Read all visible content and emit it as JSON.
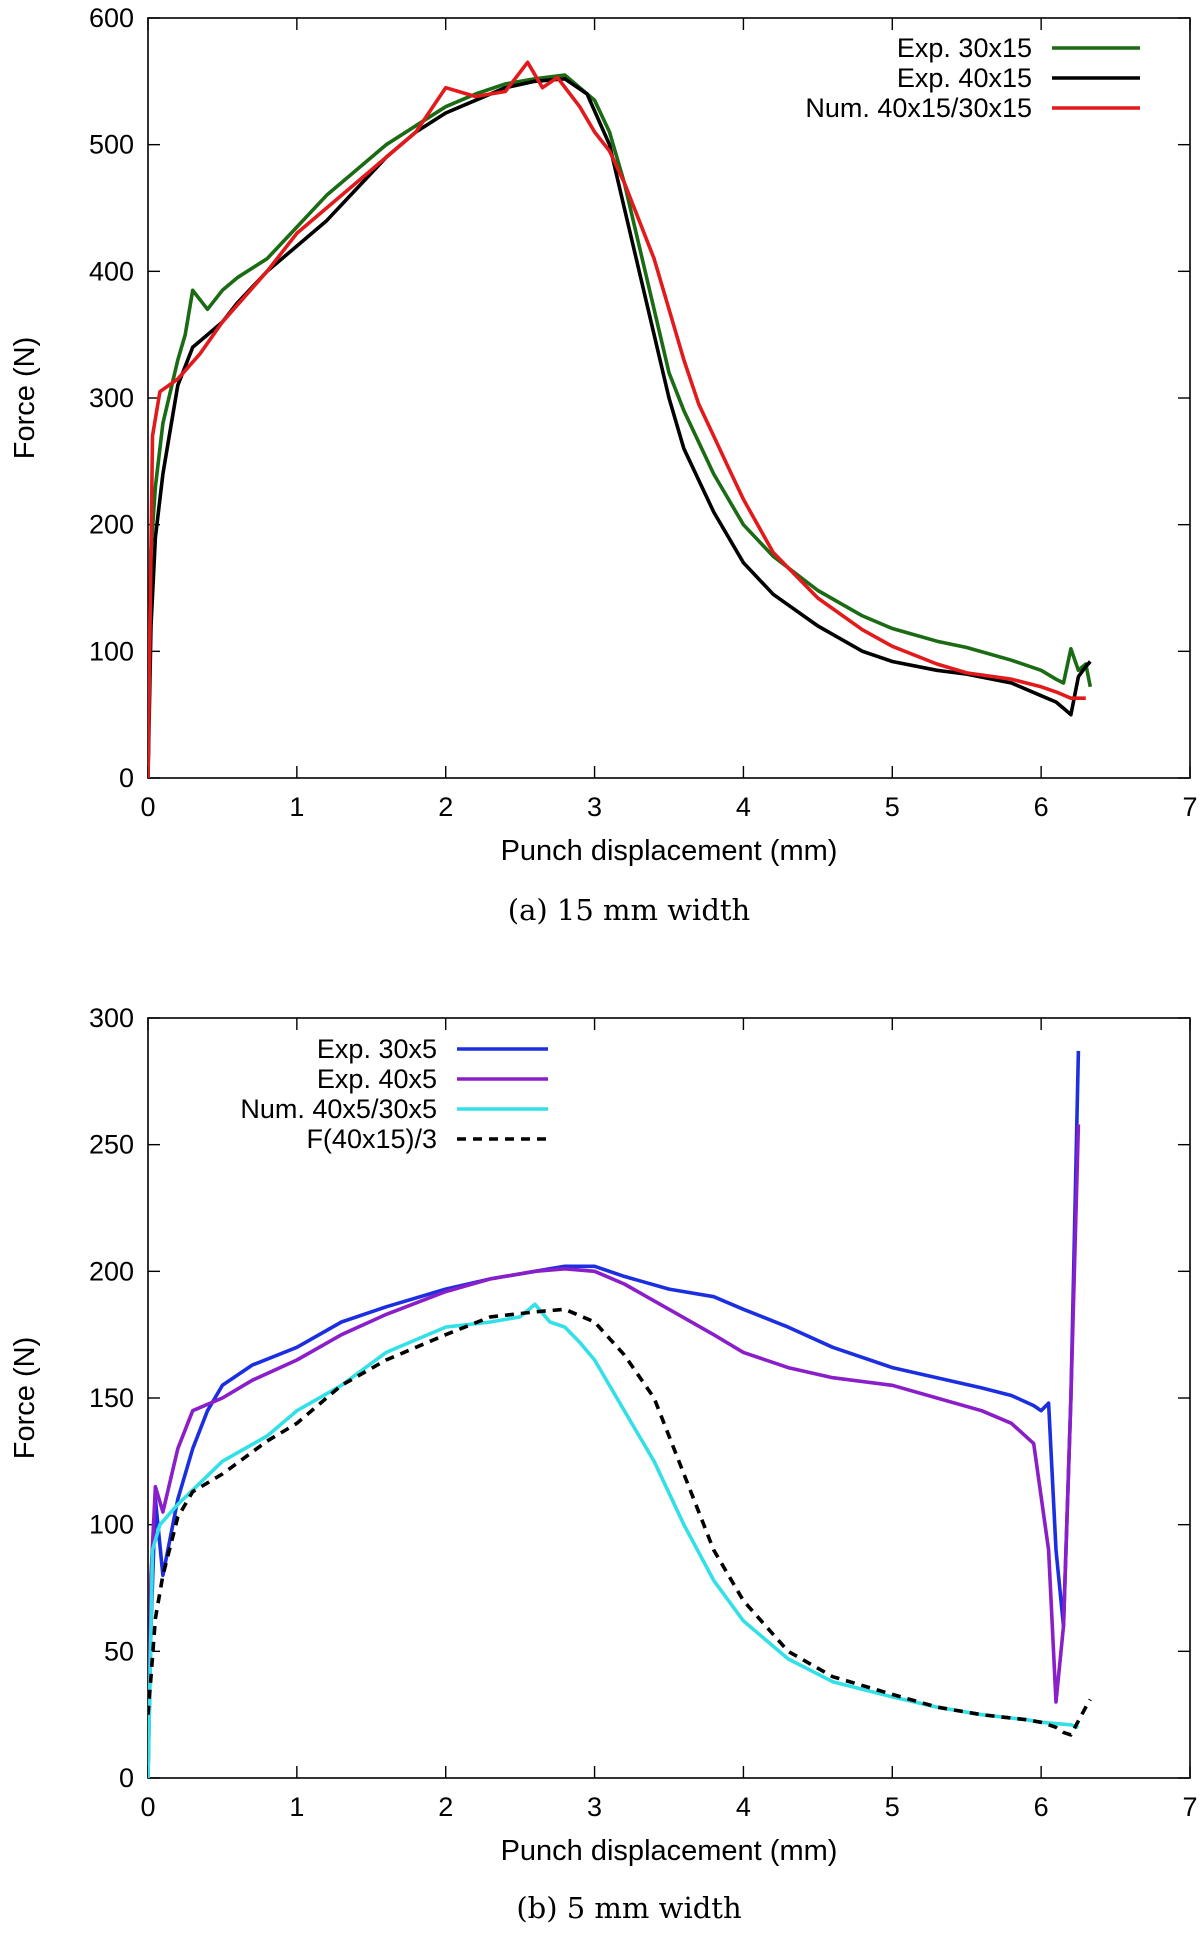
{
  "chart_data": [
    {
      "type": "line",
      "caption": "(a) 15 mm width",
      "xlabel": "Punch displacement (mm)",
      "ylabel": "Force (N)",
      "xlim": [
        0,
        7
      ],
      "ylim": [
        0,
        600
      ],
      "xticks": [
        "0",
        "1",
        "2",
        "3",
        "4",
        "5",
        "6",
        "7"
      ],
      "yticks": [
        "0",
        "100",
        "200",
        "300",
        "400",
        "500",
        "600"
      ],
      "legend_position": "top-right",
      "series": [
        {
          "name": "Exp. 30x15",
          "color": "#1a6b14",
          "dash": "solid",
          "x": [
            0,
            0.02,
            0.05,
            0.1,
            0.2,
            0.25,
            0.3,
            0.4,
            0.5,
            0.6,
            0.8,
            1.0,
            1.2,
            1.4,
            1.6,
            1.8,
            2.0,
            2.2,
            2.4,
            2.6,
            2.8,
            3.0,
            3.1,
            3.2,
            3.3,
            3.4,
            3.5,
            3.6,
            3.8,
            4.0,
            4.2,
            4.5,
            4.8,
            5.0,
            5.3,
            5.5,
            5.8,
            6.0,
            6.1,
            6.15,
            6.2,
            6.25,
            6.3,
            6.33
          ],
          "y": [
            0,
            180,
            230,
            280,
            330,
            350,
            385,
            370,
            385,
            395,
            410,
            435,
            460,
            480,
            500,
            515,
            530,
            540,
            548,
            552,
            555,
            535,
            510,
            470,
            420,
            370,
            320,
            290,
            240,
            200,
            175,
            148,
            128,
            118,
            108,
            103,
            93,
            85,
            78,
            75,
            102,
            85,
            90,
            72
          ]
        },
        {
          "name": "Exp. 40x15",
          "color": "#000000",
          "dash": "solid",
          "x": [
            0,
            0.02,
            0.05,
            0.1,
            0.15,
            0.2,
            0.3,
            0.4,
            0.5,
            0.6,
            0.8,
            1.0,
            1.2,
            1.4,
            1.6,
            1.8,
            2.0,
            2.2,
            2.4,
            2.6,
            2.8,
            2.95,
            3.1,
            3.2,
            3.3,
            3.4,
            3.5,
            3.6,
            3.8,
            4.0,
            4.2,
            4.5,
            4.8,
            5.0,
            5.3,
            5.5,
            5.8,
            6.0,
            6.1,
            6.15,
            6.2,
            6.25,
            6.3,
            6.33
          ],
          "y": [
            0,
            120,
            190,
            240,
            275,
            310,
            340,
            350,
            360,
            375,
            400,
            420,
            440,
            465,
            490,
            510,
            525,
            535,
            545,
            550,
            552,
            540,
            500,
            450,
            400,
            350,
            300,
            260,
            210,
            170,
            145,
            120,
            100,
            92,
            85,
            82,
            75,
            65,
            60,
            55,
            50,
            80,
            88,
            92
          ]
        },
        {
          "name": "Num. 40x15/30x15",
          "color": "#e31a1c",
          "dash": "solid",
          "x": [
            0,
            0.03,
            0.08,
            0.2,
            0.35,
            0.5,
            0.8,
            1.0,
            1.2,
            1.5,
            1.8,
            2.0,
            2.2,
            2.4,
            2.55,
            2.65,
            2.75,
            2.9,
            3.0,
            3.1,
            3.2,
            3.3,
            3.4,
            3.5,
            3.6,
            3.7,
            3.8,
            3.9,
            4.0,
            4.2,
            4.5,
            4.8,
            5.0,
            5.3,
            5.5,
            5.8,
            6.0,
            6.1,
            6.2,
            6.3
          ],
          "y": [
            0,
            270,
            305,
            315,
            335,
            360,
            400,
            430,
            450,
            480,
            510,
            545,
            538,
            542,
            565,
            545,
            553,
            530,
            510,
            495,
            470,
            440,
            410,
            370,
            330,
            295,
            270,
            245,
            220,
            178,
            142,
            117,
            104,
            90,
            83,
            78,
            72,
            68,
            63,
            63
          ]
        }
      ]
    },
    {
      "type": "line",
      "caption": "(b) 5 mm width",
      "xlabel": "Punch displacement (mm)",
      "ylabel": "Force (N)",
      "xlim": [
        0,
        7
      ],
      "ylim": [
        0,
        300
      ],
      "xticks": [
        "0",
        "1",
        "2",
        "3",
        "4",
        "5",
        "6",
        "7"
      ],
      "yticks": [
        "0",
        "50",
        "100",
        "150",
        "200",
        "250",
        "300"
      ],
      "legend_position": "top-left",
      "series": [
        {
          "name": "Exp. 30x5",
          "color": "#1c2fe0",
          "dash": "solid",
          "x": [
            0,
            0.02,
            0.05,
            0.1,
            0.2,
            0.3,
            0.4,
            0.5,
            0.7,
            1.0,
            1.3,
            1.6,
            2.0,
            2.3,
            2.6,
            2.8,
            3.0,
            3.2,
            3.5,
            3.8,
            4.0,
            4.3,
            4.6,
            5.0,
            5.3,
            5.6,
            5.8,
            5.95,
            6.0,
            6.05,
            6.1,
            6.15,
            6.2,
            6.25
          ],
          "y": [
            0,
            60,
            110,
            80,
            110,
            130,
            145,
            155,
            163,
            170,
            180,
            186,
            193,
            197,
            200,
            202,
            202,
            198,
            193,
            190,
            185,
            178,
            170,
            162,
            158,
            154,
            151,
            147,
            145,
            148,
            90,
            60,
            150,
            287
          ]
        },
        {
          "name": "Exp. 40x5",
          "color": "#8a1fc9",
          "dash": "solid",
          "x": [
            0,
            0.02,
            0.05,
            0.1,
            0.2,
            0.3,
            0.5,
            0.7,
            1.0,
            1.3,
            1.6,
            2.0,
            2.3,
            2.6,
            2.8,
            3.0,
            3.2,
            3.5,
            3.8,
            4.0,
            4.3,
            4.6,
            5.0,
            5.3,
            5.6,
            5.8,
            5.95,
            6.05,
            6.1,
            6.15,
            6.2,
            6.25
          ],
          "y": [
            0,
            80,
            115,
            105,
            130,
            145,
            150,
            157,
            165,
            175,
            183,
            192,
            197,
            200,
            201,
            200,
            195,
            185,
            175,
            168,
            162,
            158,
            155,
            150,
            145,
            140,
            132,
            90,
            30,
            60,
            150,
            258
          ]
        },
        {
          "name": "Num. 40x5/30x5",
          "color": "#33e0e8",
          "dash": "solid",
          "x": [
            0,
            0.03,
            0.08,
            0.2,
            0.5,
            0.8,
            1.0,
            1.3,
            1.6,
            2.0,
            2.3,
            2.5,
            2.6,
            2.7,
            2.8,
            2.9,
            3.0,
            3.2,
            3.4,
            3.6,
            3.8,
            4.0,
            4.3,
            4.6,
            5.0,
            5.3,
            5.6,
            5.9,
            6.0,
            6.2,
            6.25
          ],
          "y": [
            0,
            90,
            100,
            108,
            125,
            135,
            145,
            155,
            168,
            178,
            180,
            182,
            187,
            180,
            178,
            172,
            165,
            145,
            125,
            100,
            78,
            62,
            47,
            38,
            32,
            28,
            25,
            23,
            22,
            21,
            20
          ]
        },
        {
          "name": "F(40x15)/3",
          "color": "#000000",
          "dash": "dashed",
          "x": [
            0,
            0.02,
            0.05,
            0.1,
            0.2,
            0.3,
            0.5,
            0.8,
            1.0,
            1.3,
            1.6,
            2.0,
            2.3,
            2.6,
            2.8,
            3.0,
            3.2,
            3.4,
            3.6,
            3.8,
            4.0,
            4.3,
            4.6,
            5.0,
            5.3,
            5.6,
            5.9,
            6.0,
            6.1,
            6.15,
            6.2,
            6.3,
            6.33
          ],
          "y": [
            25,
            40,
            63,
            80,
            103,
            113,
            120,
            133,
            140,
            155,
            165,
            175,
            182,
            184,
            185,
            180,
            167,
            150,
            120,
            90,
            70,
            50,
            40,
            33,
            28,
            25,
            23,
            22,
            20,
            18,
            17,
            28,
            31
          ]
        }
      ]
    }
  ]
}
